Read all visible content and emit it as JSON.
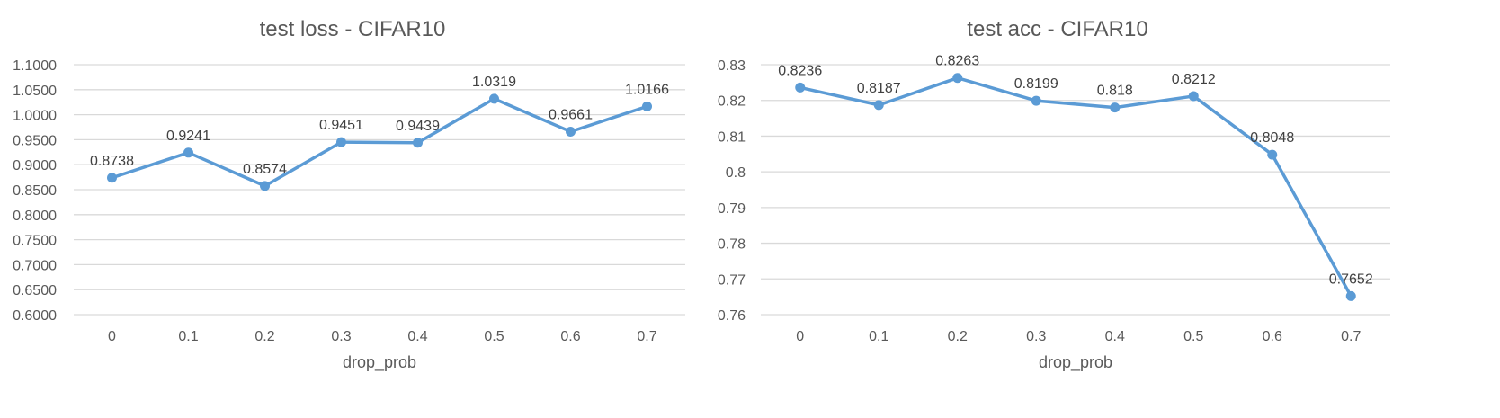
{
  "chart_data": [
    {
      "type": "line",
      "title": "test loss - CIFAR10",
      "xlabel": "drop_prob",
      "ylabel": "",
      "categories": [
        "0",
        "0.1",
        "0.2",
        "0.3",
        "0.4",
        "0.5",
        "0.6",
        "0.7"
      ],
      "series": [
        {
          "values": [
            0.8738,
            0.9241,
            0.8574,
            0.9451,
            0.9439,
            1.0319,
            0.9661,
            1.0166
          ]
        }
      ],
      "data_labels": [
        "0.8738",
        "0.9241",
        "0.8574",
        "0.9451",
        "0.9439",
        "1.0319",
        "0.9661",
        "1.0166"
      ],
      "ylim": [
        0.6,
        1.1
      ],
      "yticks": [
        "0.6000",
        "0.6500",
        "0.7000",
        "0.7500",
        "0.8000",
        "0.8500",
        "0.9000",
        "0.9500",
        "1.0000",
        "1.0500",
        "1.1000"
      ],
      "grid": true,
      "legend": "none",
      "color": "#5b9bd5"
    },
    {
      "type": "line",
      "title": "test acc - CIFAR10",
      "xlabel": "drop_prob",
      "ylabel": "",
      "categories": [
        "0",
        "0.1",
        "0.2",
        "0.3",
        "0.4",
        "0.5",
        "0.6",
        "0.7"
      ],
      "series": [
        {
          "values": [
            0.8236,
            0.8187,
            0.8263,
            0.8199,
            0.818,
            0.8212,
            0.8048,
            0.7652
          ]
        }
      ],
      "data_labels": [
        "0.8236",
        "0.8187",
        "0.8263",
        "0.8199",
        "0.818",
        "0.8212",
        "0.8048",
        "0.7652"
      ],
      "ylim": [
        0.76,
        0.83
      ],
      "yticks": [
        "0.76",
        "0.77",
        "0.78",
        "0.79",
        "0.8",
        "0.81",
        "0.82",
        "0.83"
      ],
      "grid": true,
      "legend": "none",
      "color": "#5b9bd5"
    }
  ]
}
